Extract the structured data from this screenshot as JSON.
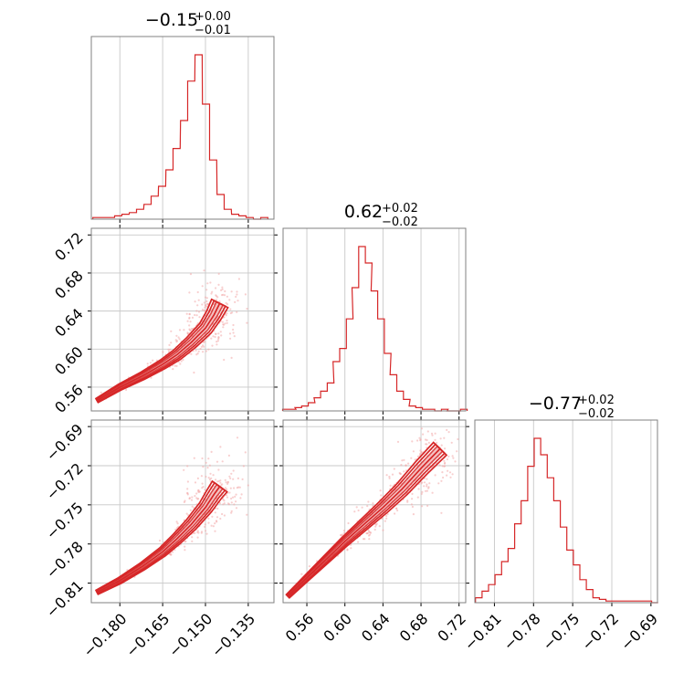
{
  "colors": {
    "accent": "#d62728",
    "frame": "#808080",
    "grid": "#c8c8c8"
  },
  "chart_data": {
    "type": "corner",
    "grid": true,
    "parameters": [
      {
        "summary": {
          "median": "−0.15",
          "plus": "+0.00",
          "minus": "−0.01"
        },
        "range": [
          -0.19,
          -0.126
        ],
        "ticks": [
          "−0.180",
          "−0.165",
          "−0.150",
          "−0.135"
        ],
        "tick_values": [
          -0.18,
          -0.165,
          -0.15,
          -0.135
        ],
        "hist_centers": [
          -0.1882,
          -0.1857,
          -0.1831,
          -0.1806,
          -0.178,
          -0.1754,
          -0.1729,
          -0.1703,
          -0.1678,
          -0.1652,
          -0.1626,
          -0.1601,
          -0.1575,
          -0.155,
          -0.1524,
          -0.1498,
          -0.1473,
          -0.1447,
          -0.1422,
          -0.1396,
          -0.137,
          -0.1345,
          -0.1319,
          -0.1294
        ],
        "hist_counts": [
          1,
          1,
          1,
          2,
          3,
          4,
          6,
          9,
          14,
          20,
          30,
          43,
          60,
          84,
          100,
          70,
          36,
          15,
          6,
          3,
          2,
          1,
          0,
          1
        ]
      },
      {
        "summary": {
          "median": "0.62",
          "plus": "+0.02",
          "minus": "−0.02"
        },
        "range": [
          0.535,
          0.727
        ],
        "ticks": [
          "0.56",
          "0.60",
          "0.64",
          "0.68",
          "0.72"
        ],
        "tick_values": [
          0.56,
          0.6,
          0.64,
          0.68,
          0.72
        ],
        "hist_centers": [
          0.538,
          0.545,
          0.551,
          0.558,
          0.565,
          0.571,
          0.578,
          0.585,
          0.591,
          0.598,
          0.605,
          0.611,
          0.618,
          0.625,
          0.631,
          0.638,
          0.645,
          0.651,
          0.658,
          0.665,
          0.671,
          0.678,
          0.685,
          0.691,
          0.698,
          0.705,
          0.711,
          0.718,
          0.725
        ],
        "hist_counts": [
          1,
          1,
          2,
          3,
          5,
          8,
          12,
          17,
          30,
          38,
          56,
          75,
          100,
          90,
          73,
          56,
          35,
          22,
          12,
          7,
          3,
          2,
          1,
          1,
          0,
          1,
          0,
          0,
          1
        ]
      },
      {
        "summary": {
          "median": "−0.77",
          "plus": "+0.02",
          "minus": "−0.02"
        },
        "range": [
          -0.825,
          -0.685
        ],
        "ticks": [
          "−0.81",
          "−0.78",
          "−0.75",
          "−0.72",
          "−0.69"
        ],
        "tick_values": [
          -0.81,
          -0.78,
          -0.75,
          -0.72,
          -0.69
        ],
        "hist_centers": [
          -0.822,
          -0.817,
          -0.812,
          -0.807,
          -0.802,
          -0.797,
          -0.792,
          -0.787,
          -0.782,
          -0.777,
          -0.772,
          -0.767,
          -0.762,
          -0.757,
          -0.752,
          -0.747,
          -0.742,
          -0.737,
          -0.732,
          -0.727,
          -0.722,
          -0.717,
          -0.712,
          -0.707,
          -0.702,
          -0.697,
          -0.692,
          -0.687
        ],
        "hist_counts": [
          3,
          7,
          11,
          17,
          25,
          33,
          48,
          62,
          83,
          100,
          90,
          76,
          62,
          46,
          32,
          23,
          14,
          8,
          3,
          2,
          1,
          1,
          1,
          1,
          1,
          1,
          1,
          0
        ]
      }
    ],
    "pairs": [
      {
        "x_param": 0,
        "y_param": 1,
        "ridge": [
          [
            -0.188,
            0.546
          ],
          [
            -0.18,
            0.56
          ],
          [
            -0.172,
            0.572
          ],
          [
            -0.165,
            0.584
          ],
          [
            -0.16,
            0.594
          ],
          [
            -0.155,
            0.607
          ],
          [
            -0.15,
            0.622
          ],
          [
            -0.147,
            0.636
          ],
          [
            -0.145,
            0.648
          ]
        ]
      },
      {
        "x_param": 0,
        "y_param": 2,
        "ridge": [
          [
            -0.188,
            -0.817
          ],
          [
            -0.18,
            -0.808
          ],
          [
            -0.172,
            -0.797
          ],
          [
            -0.165,
            -0.786
          ],
          [
            -0.16,
            -0.776
          ],
          [
            -0.155,
            -0.765
          ],
          [
            -0.15,
            -0.752
          ],
          [
            -0.147,
            -0.742
          ],
          [
            -0.145,
            -0.736
          ]
        ]
      },
      {
        "x_param": 1,
        "y_param": 2,
        "ridge": [
          [
            0.54,
            -0.82
          ],
          [
            0.56,
            -0.806
          ],
          [
            0.58,
            -0.792
          ],
          [
            0.6,
            -0.778
          ],
          [
            0.62,
            -0.765
          ],
          [
            0.64,
            -0.752
          ],
          [
            0.66,
            -0.738
          ],
          [
            0.68,
            -0.722
          ],
          [
            0.7,
            -0.707
          ]
        ]
      }
    ]
  }
}
